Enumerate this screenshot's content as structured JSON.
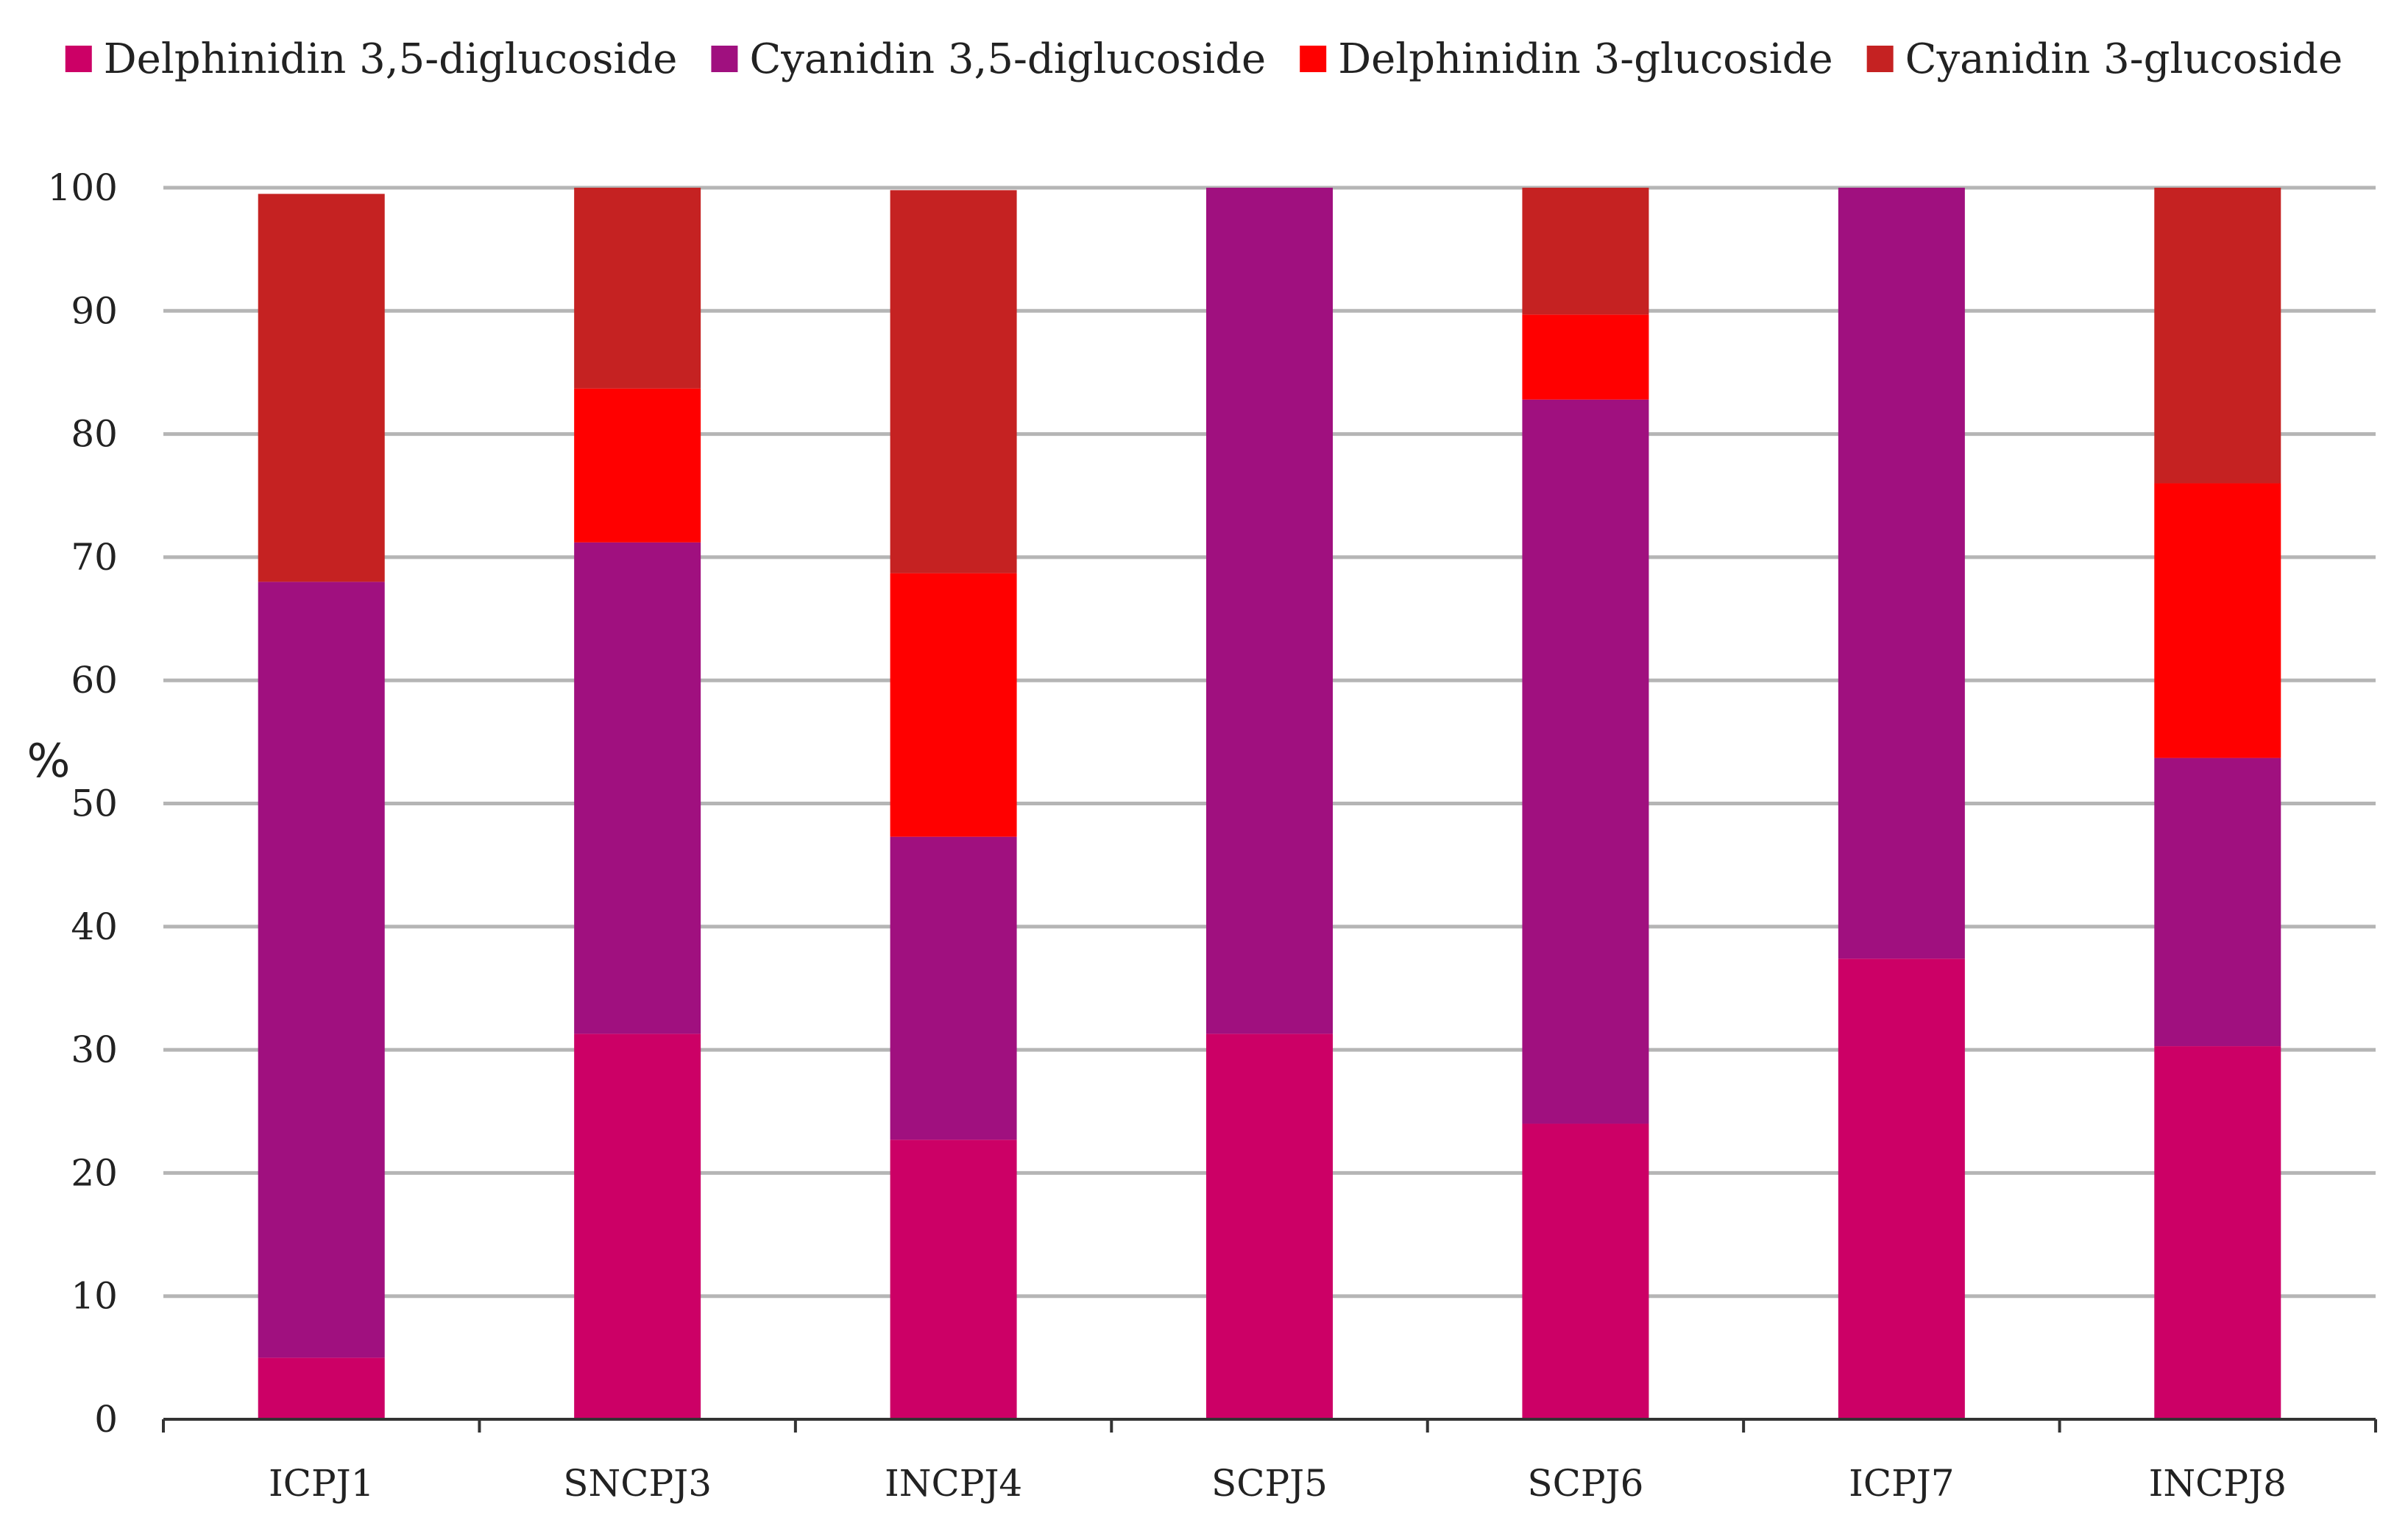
{
  "chart_data": {
    "type": "bar",
    "stacked": true,
    "title": "",
    "xlabel": "",
    "ylabel": "%",
    "ylim": [
      0,
      100
    ],
    "yticks": [
      0,
      10,
      20,
      30,
      40,
      50,
      60,
      70,
      80,
      90,
      100
    ],
    "grid": true,
    "legend_position": "top",
    "categories": [
      "ICPJ1",
      "SNCPJ3",
      "INCPJ4",
      "SCPJ5",
      "SCPJ6",
      "ICPJ7",
      "INCPJ8"
    ],
    "series": [
      {
        "name": "Delphinidin 3,5-diglucoside",
        "color": "#CC0066",
        "values": [
          5.0,
          31.3,
          22.7,
          31.3,
          24.0,
          37.4,
          30.3
        ]
      },
      {
        "name": "Cyanidin 3,5-diglucoside",
        "color": "#A0107F",
        "values": [
          63.0,
          39.9,
          24.6,
          68.7,
          58.8,
          62.6,
          23.4
        ]
      },
      {
        "name": "Delphinidin 3-glucoside",
        "color": "#FF0000",
        "values": [
          0.0,
          12.5,
          21.4,
          0.0,
          6.9,
          0.0,
          22.3
        ]
      },
      {
        "name": "Cyanidin 3-glucoside",
        "color": "#C52222",
        "values": [
          31.5,
          16.3,
          31.1,
          0.0,
          10.3,
          0.0,
          24.0
        ]
      }
    ]
  },
  "styles": {
    "grid_color": "#B5B5B5",
    "axis_color": "#333333",
    "text_color": "#222222"
  }
}
